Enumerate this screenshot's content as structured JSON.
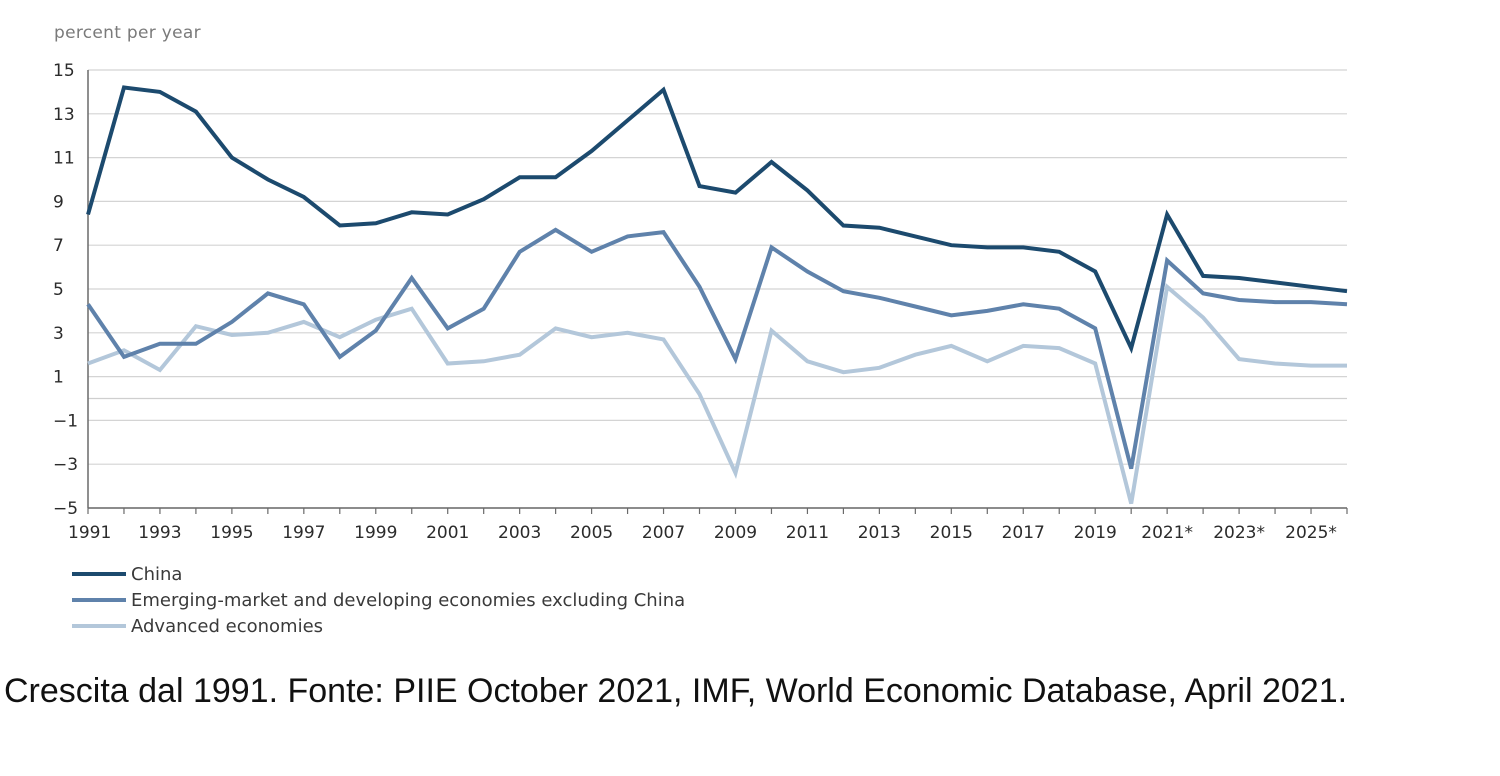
{
  "chart_data": {
    "type": "line",
    "ylabel": "percent per year",
    "ylim": [
      -5,
      15
    ],
    "yticks": [
      15,
      13,
      11,
      9,
      7,
      5,
      3,
      1,
      -1,
      -3,
      -5
    ],
    "x": [
      1991,
      1992,
      1993,
      1994,
      1995,
      1996,
      1997,
      1998,
      1999,
      2000,
      2001,
      2002,
      2003,
      2004,
      2005,
      2006,
      2007,
      2008,
      2009,
      2010,
      2011,
      2012,
      2013,
      2014,
      2015,
      2016,
      2017,
      2018,
      2019,
      2020,
      2021,
      2022,
      2023,
      2024,
      2025,
      2026
    ],
    "xticks": [
      {
        "value": 1991,
        "label": "1991"
      },
      {
        "value": 1993,
        "label": "1993"
      },
      {
        "value": 1995,
        "label": "1995"
      },
      {
        "value": 1997,
        "label": "1997"
      },
      {
        "value": 1999,
        "label": "1999"
      },
      {
        "value": 2001,
        "label": "2001"
      },
      {
        "value": 2003,
        "label": "2003"
      },
      {
        "value": 2005,
        "label": "2005"
      },
      {
        "value": 2007,
        "label": "2007"
      },
      {
        "value": 2009,
        "label": "2009"
      },
      {
        "value": 2011,
        "label": "2011"
      },
      {
        "value": 2013,
        "label": "2013"
      },
      {
        "value": 2015,
        "label": "2015"
      },
      {
        "value": 2017,
        "label": "2017"
      },
      {
        "value": 2019,
        "label": "2019"
      },
      {
        "value": 2021,
        "label": "2021*"
      },
      {
        "value": 2023,
        "label": "2023*"
      },
      {
        "value": 2025,
        "label": "2025*"
      }
    ],
    "series": [
      {
        "name": "China",
        "color": "#1c4a6e",
        "values": [
          8.4,
          14.2,
          14.0,
          13.1,
          11.0,
          10.0,
          9.2,
          7.9,
          8.0,
          8.5,
          8.4,
          9.1,
          10.1,
          10.1,
          11.3,
          12.7,
          14.1,
          9.7,
          9.4,
          10.8,
          9.5,
          7.9,
          7.8,
          7.4,
          7.0,
          6.9,
          6.9,
          6.7,
          5.8,
          2.3,
          8.4,
          5.6,
          5.5,
          5.3,
          5.1,
          4.9
        ]
      },
      {
        "name": "Emerging-market and developing economies excluding China",
        "color": "#5f82ab",
        "values": [
          4.3,
          1.9,
          2.5,
          2.5,
          3.5,
          4.8,
          4.3,
          1.9,
          3.1,
          5.5,
          3.2,
          4.1,
          6.7,
          7.7,
          6.7,
          7.4,
          7.6,
          5.1,
          1.8,
          6.9,
          5.8,
          4.9,
          4.6,
          4.2,
          3.8,
          4.0,
          4.3,
          4.1,
          3.2,
          -3.2,
          6.3,
          4.8,
          4.5,
          4.4,
          4.4,
          4.3
        ]
      },
      {
        "name": "Advanced economies",
        "color": "#b3c7da",
        "values": [
          1.6,
          2.2,
          1.3,
          3.3,
          2.9,
          3.0,
          3.5,
          2.8,
          3.6,
          4.1,
          1.6,
          1.7,
          2.0,
          3.2,
          2.8,
          3.0,
          2.7,
          0.2,
          -3.4,
          3.1,
          1.7,
          1.2,
          1.4,
          2.0,
          2.4,
          1.7,
          2.4,
          2.3,
          1.6,
          -4.8,
          5.1,
          3.7,
          1.8,
          1.6,
          1.5,
          1.5
        ]
      }
    ]
  },
  "caption": "Crescita dal 1991. Fonte: PIIE October 2021, IMF, World Economic Database, April 2021."
}
